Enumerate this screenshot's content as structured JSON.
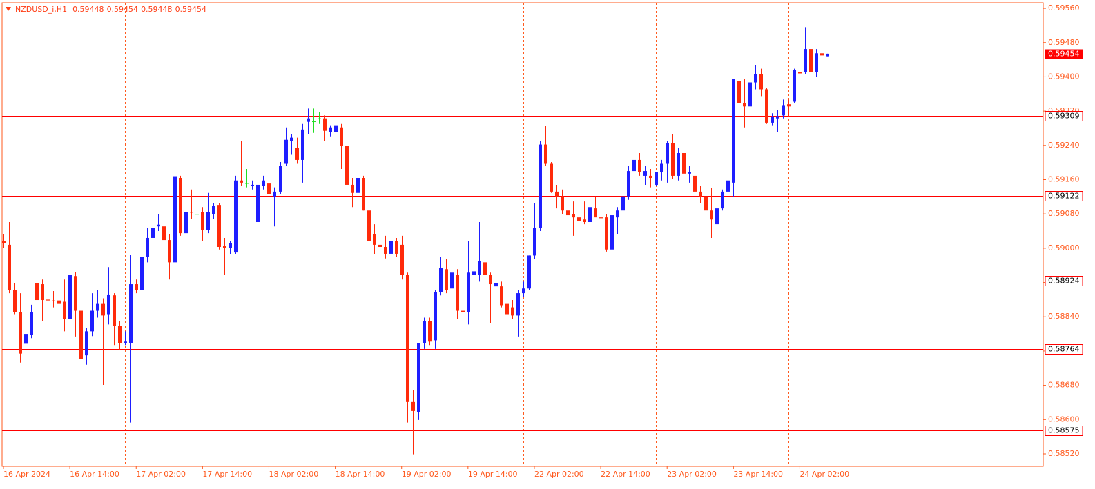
{
  "chart_data": {
    "type": "candlestick",
    "title": "NZDUSD_i,H1",
    "categories": [
      "16 Apr 2024",
      null,
      null,
      null,
      null,
      null,
      null,
      null,
      null,
      null,
      null,
      null,
      "16 Apr 14:00",
      null,
      null,
      null,
      null,
      null,
      null,
      null,
      null,
      null,
      null,
      null,
      "17 Apr 02:00",
      null,
      null,
      null,
      null,
      null,
      null,
      null,
      null,
      null,
      null,
      null,
      "17 Apr 14:00",
      null,
      null,
      null,
      null,
      null,
      null,
      null,
      null,
      null,
      null,
      null,
      "18 Apr 02:00",
      null,
      null,
      null,
      null,
      null,
      null,
      null,
      null,
      null,
      null,
      null,
      "18 Apr 14:00",
      null,
      null,
      null,
      null,
      null,
      null,
      null,
      null,
      null,
      null,
      null,
      "19 Apr 02:00",
      null,
      null,
      null,
      null,
      null,
      null,
      null,
      null,
      null,
      null,
      null,
      "19 Apr 14:00",
      null,
      null,
      null,
      null,
      null,
      null,
      null,
      null,
      null,
      null,
      null,
      "22 Apr 02:00",
      null,
      null,
      null,
      null,
      null,
      null,
      null,
      null,
      null,
      null,
      null,
      "22 Apr 14:00",
      null,
      null,
      null,
      null,
      null,
      null,
      null,
      null,
      null,
      null,
      null,
      "23 Apr 02:00",
      null,
      null,
      null,
      null,
      null,
      null,
      null,
      null,
      null,
      null,
      null,
      "23 Apr 14:00",
      null,
      null,
      null,
      null,
      null,
      null,
      null,
      null,
      null,
      null,
      null,
      "24 Apr 02:00",
      null,
      null,
      null,
      null,
      null
    ],
    "open": [
      0.59016,
      0.59008,
      0.58903,
      0.58851,
      0.58777,
      0.58798,
      0.58919,
      0.58916,
      0.5888,
      0.58878,
      0.58878,
      0.58875,
      0.58835,
      0.58935,
      0.58854,
      0.5875,
      0.58806,
      0.58854,
      0.5887,
      0.58846,
      0.5889,
      0.58819,
      0.58778,
      0.58778,
      0.58916,
      0.58903,
      0.5898,
      0.59024,
      0.59051,
      0.59051,
      0.59019,
      0.58967,
      0.59164,
      0.59035,
      0.59085,
      0.5908,
      0.59085,
      0.59043,
      0.5908,
      0.59101,
      0.59006,
      0.59,
      0.5899,
      0.59158,
      0.59152,
      0.59145,
      0.59061,
      0.59145,
      0.59151,
      0.59121,
      0.59132,
      0.59197,
      0.5925,
      0.59234,
      0.59206,
      0.59295,
      0.59296,
      0.59303,
      0.59303,
      0.59271,
      0.59271,
      0.59282,
      0.59239,
      0.59148,
      0.59129,
      0.59164,
      0.59088,
      0.59032,
      0.59008,
      0.59003,
      0.58987,
      0.59016,
      0.59008,
      0.58938,
      0.58641,
      0.58617,
      0.58778,
      0.5883,
      0.58785,
      0.58898,
      0.58951,
      0.58906,
      0.58938,
      0.58854,
      0.58851,
      0.58938,
      0.58938,
      0.58967,
      0.58938,
      0.58911,
      0.58911,
      0.5887,
      0.58862,
      0.58843,
      0.58895,
      0.58906,
      0.58983,
      0.59048,
      0.59242,
      0.59197,
      0.59132,
      0.59121,
      0.59088,
      0.5908,
      0.59072,
      0.59067,
      0.59061,
      0.59093,
      0.59072,
      0.59072,
      0.58997,
      0.59072,
      0.59088,
      0.59121,
      0.5918,
      0.59206,
      0.59169,
      0.59169,
      0.59148,
      0.59177,
      0.59197,
      0.59245,
      0.59169,
      0.59222,
      0.59174,
      0.59169,
      0.59132,
      0.59121,
      0.59088,
      0.59056,
      0.59093,
      0.59132,
      0.59153,
      0.5939,
      0.59339,
      0.59331,
      0.59387,
      0.59407,
      0.59371,
      0.59293,
      0.59303,
      0.5931,
      0.59336,
      0.59342,
      0.59411,
      0.59411,
      0.59465,
      0.59411,
      0.59455,
      0.59448
    ],
    "high": [
      0.59032,
      0.59061,
      0.58919,
      0.58895,
      0.58806,
      0.58868,
      0.58956,
      0.58927,
      0.58927,
      0.589,
      0.58958,
      0.58927,
      0.58945,
      0.58945,
      0.58858,
      0.58814,
      0.58895,
      0.58903,
      0.58883,
      0.58956,
      0.58895,
      0.5883,
      0.58806,
      0.58985,
      0.58927,
      0.59016,
      0.59048,
      0.59077,
      0.5908,
      0.59072,
      0.59032,
      0.59175,
      0.59169,
      0.59137,
      0.59137,
      0.59145,
      0.59096,
      0.59129,
      0.59105,
      0.59105,
      0.59024,
      0.59016,
      0.59169,
      0.5925,
      0.59185,
      0.59158,
      0.59158,
      0.59169,
      0.59161,
      0.59142,
      0.59201,
      0.59282,
      0.59266,
      0.59258,
      0.5929,
      0.59326,
      0.59326,
      0.59318,
      0.5931,
      0.59287,
      0.5931,
      0.5929,
      0.59266,
      0.59164,
      0.59222,
      0.59169,
      0.59096,
      0.59056,
      0.59024,
      0.59029,
      0.59024,
      0.59024,
      0.59029,
      0.58943,
      0.58669,
      0.58778,
      0.58838,
      0.58838,
      0.58903,
      0.5898,
      0.58975,
      0.58983,
      0.58951,
      0.5887,
      0.59016,
      0.59008,
      0.59061,
      0.59008,
      0.58943,
      0.58938,
      0.58922,
      0.58887,
      0.58879,
      0.58903,
      0.58922,
      0.58983,
      0.59105,
      0.5925,
      0.59285,
      0.59201,
      0.59148,
      0.59137,
      0.59132,
      0.59109,
      0.59096,
      0.59109,
      0.59105,
      0.59121,
      0.59121,
      0.5908,
      0.5908,
      0.59096,
      0.59169,
      0.59193,
      0.59222,
      0.59222,
      0.59193,
      0.59185,
      0.59177,
      0.59206,
      0.5925,
      0.59266,
      0.59234,
      0.59229,
      0.59193,
      0.5918,
      0.59145,
      0.59193,
      0.5914,
      0.59096,
      0.59137,
      0.59164,
      0.59395,
      0.59481,
      0.59395,
      0.59411,
      0.59428,
      0.59419,
      0.59374,
      0.59315,
      0.59323,
      0.59347,
      0.59347,
      0.59419,
      0.59481,
      0.59516,
      0.59468,
      0.59465,
      0.59471,
      0.59454
    ],
    "low": [
      0.59,
      0.58895,
      0.58846,
      0.58733,
      0.58733,
      0.5879,
      0.58822,
      0.5883,
      0.58846,
      0.58862,
      0.58822,
      0.58806,
      0.58822,
      0.58794,
      0.58728,
      0.58728,
      0.58795,
      0.58838,
      0.58681,
      0.58822,
      0.58774,
      0.58762,
      0.58774,
      0.58593,
      0.58895,
      0.589,
      0.58967,
      0.59008,
      0.5904,
      0.59012,
      0.58927,
      0.58938,
      0.59029,
      0.59032,
      0.59069,
      0.59072,
      0.59016,
      0.59035,
      0.59069,
      0.58997,
      0.58938,
      0.58987,
      0.58987,
      0.59145,
      0.59142,
      0.59137,
      0.59056,
      0.59137,
      0.59113,
      0.59051,
      0.59126,
      0.59193,
      0.59218,
      0.59197,
      0.59153,
      0.59266,
      0.59269,
      0.5929,
      0.5925,
      0.59261,
      0.59242,
      0.59185,
      0.591,
      0.59096,
      0.59096,
      0.59088,
      0.59016,
      0.58987,
      0.58987,
      0.58976,
      0.5898,
      0.5898,
      0.58927,
      0.58593,
      0.58519,
      0.58599,
      0.58765,
      0.58774,
      0.58765,
      0.5889,
      0.58895,
      0.589,
      0.58835,
      0.58814,
      0.58822,
      0.58919,
      0.58922,
      0.58935,
      0.58826,
      0.58903,
      0.58862,
      0.58841,
      0.58835,
      0.58794,
      0.58887,
      0.58903,
      0.58975,
      0.5904,
      0.59193,
      0.59129,
      0.59093,
      0.5908,
      0.59069,
      0.59029,
      0.59048,
      0.59056,
      0.59056,
      0.59077,
      0.59056,
      0.58992,
      0.58943,
      0.59032,
      0.59083,
      0.59113,
      0.59164,
      0.59169,
      0.59148,
      0.59142,
      0.59145,
      0.59158,
      0.59153,
      0.59161,
      0.59158,
      0.59164,
      0.59153,
      0.59129,
      0.59105,
      0.59056,
      0.59024,
      0.59048,
      0.59088,
      0.59126,
      0.59121,
      0.59282,
      0.59282,
      0.59323,
      0.59371,
      0.59355,
      0.5929,
      0.59287,
      0.59271,
      0.59303,
      0.59306,
      0.59339,
      0.59403,
      0.59406,
      0.59406,
      0.594,
      0.59428,
      0.59448
    ],
    "close": [
      0.59012,
      0.58903,
      0.58851,
      0.58754,
      0.588,
      0.58851,
      0.58879,
      0.58879,
      0.58878,
      0.58876,
      0.5887,
      0.58835,
      0.58938,
      0.58854,
      0.58741,
      0.58806,
      0.58854,
      0.5887,
      0.58843,
      0.58892,
      0.58819,
      0.58778,
      0.58782,
      0.58916,
      0.58903,
      0.5898,
      0.59024,
      0.59048,
      0.59055,
      0.59019,
      0.58967,
      0.59168,
      0.59035,
      0.59085,
      0.59083,
      0.5908,
      0.59043,
      0.59085,
      0.59099,
      0.59003,
      0.59,
      0.59012,
      0.59158,
      0.59153,
      0.59152,
      0.59148,
      0.59148,
      0.59158,
      0.59126,
      0.59132,
      0.59193,
      0.59253,
      0.59258,
      0.59206,
      0.59277,
      0.59303,
      0.59296,
      0.59303,
      0.59274,
      0.59282,
      0.59287,
      0.59239,
      0.59148,
      0.59129,
      0.59164,
      0.59088,
      0.59016,
      0.59008,
      0.59003,
      0.58987,
      0.59016,
      0.58987,
      0.58938,
      0.58641,
      0.5862,
      0.58778,
      0.5883,
      0.58782,
      0.58898,
      0.58954,
      0.58903,
      0.58943,
      0.58854,
      0.58851,
      0.58943,
      0.58946,
      0.5897,
      0.58938,
      0.58916,
      0.58919,
      0.58867,
      0.58846,
      0.58843,
      0.58895,
      0.58906,
      0.58983,
      0.59048,
      0.59242,
      0.59197,
      0.59132,
      0.59121,
      0.59088,
      0.59077,
      0.59072,
      0.59064,
      0.59061,
      0.59096,
      0.59072,
      0.5907,
      0.58997,
      0.59077,
      0.59088,
      0.59121,
      0.5918,
      0.59206,
      0.59177,
      0.5918,
      0.59164,
      0.59177,
      0.59197,
      0.59245,
      0.59169,
      0.59222,
      0.59174,
      0.59177,
      0.59132,
      0.59121,
      0.59088,
      0.59067,
      0.59093,
      0.59132,
      0.59158,
      0.59395,
      0.59339,
      0.59331,
      0.59387,
      0.59407,
      0.59371,
      0.59293,
      0.59306,
      0.59308,
      0.59334,
      0.59331,
      0.59416,
      0.59408,
      0.59465,
      0.59411,
      0.59455,
      0.5945,
      0.59454
    ],
    "up_color": "#1e1eff",
    "down_color": "#ff2a0a",
    "doji_color": "#22dd22",
    "ylim": [
      0.58491,
      0.59573
    ],
    "yticks": [
      {
        "value": 0.5956,
        "label": "0.59560"
      },
      {
        "value": 0.5948,
        "label": "0.59480"
      },
      {
        "value": 0.594,
        "label": "0.59400"
      },
      {
        "value": 0.5932,
        "label": "0.59320"
      },
      {
        "value": 0.5924,
        "label": "0.59240"
      },
      {
        "value": 0.5916,
        "label": "0.59160"
      },
      {
        "value": 0.5908,
        "label": "0.59080"
      },
      {
        "value": 0.59,
        "label": "0.59000"
      },
      {
        "value": 0.5892,
        "label": "0.58920"
      },
      {
        "value": 0.5884,
        "label": "0.58840"
      },
      {
        "value": 0.5876,
        "label": "0.58760"
      },
      {
        "value": 0.5868,
        "label": "0.58680"
      },
      {
        "value": 0.586,
        "label": "0.58600"
      },
      {
        "value": 0.5852,
        "label": "0.58520"
      }
    ],
    "levels": [
      0.59309,
      0.59122,
      0.58924,
      0.58764,
      0.58575
    ],
    "level_color": "#ff0000"
  }
}
